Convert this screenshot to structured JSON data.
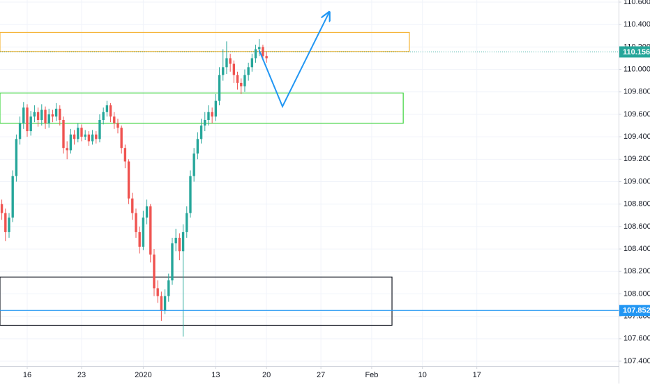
{
  "chart_data": {
    "type": "candlestick",
    "up_color": "#26a69a",
    "down_color": "#ef5350",
    "grid": true,
    "xlim": [
      -0.5,
      170.1
    ],
    "ylim": [
      107.4,
      110.6
    ],
    "yticks": [
      {
        "value": 107.4,
        "label": "107.400"
      },
      {
        "value": 107.6,
        "label": "107.600"
      },
      {
        "value": 107.8,
        "label": "107.800"
      },
      {
        "value": 108.0,
        "label": "108.000"
      },
      {
        "value": 108.2,
        "label": "108.200"
      },
      {
        "value": 108.4,
        "label": "108.400"
      },
      {
        "value": 108.6,
        "label": "108.600"
      },
      {
        "value": 108.8,
        "label": "108.800"
      },
      {
        "value": 109.0,
        "label": "109.000"
      },
      {
        "value": 109.2,
        "label": "109.200"
      },
      {
        "value": 109.4,
        "label": "109.400"
      },
      {
        "value": 109.6,
        "label": "109.600"
      },
      {
        "value": 109.8,
        "label": "109.800"
      },
      {
        "value": 110.0,
        "label": "110.000"
      },
      {
        "value": 110.2,
        "label": "110.200"
      },
      {
        "value": 110.4,
        "label": "110.400"
      },
      {
        "value": 110.6,
        "label": "110.600"
      }
    ],
    "xticks": [
      {
        "value": 7,
        "label": "16"
      },
      {
        "value": 22,
        "label": "23"
      },
      {
        "value": 39,
        "label": "2020"
      },
      {
        "value": 59,
        "label": "13"
      },
      {
        "value": 73,
        "label": "20"
      },
      {
        "value": 88,
        "label": "27"
      },
      {
        "value": 102,
        "label": "Feb"
      },
      {
        "value": 116,
        "label": "10"
      },
      {
        "value": 131,
        "label": "17"
      }
    ],
    "x": [
      0,
      1,
      2,
      3,
      4,
      5,
      6,
      7,
      8,
      9,
      10,
      11,
      12,
      13,
      14,
      15,
      16,
      17,
      18,
      19,
      20,
      21,
      22,
      23,
      24,
      25,
      26,
      27,
      28,
      29,
      30,
      31,
      32,
      33,
      34,
      35,
      36,
      37,
      38,
      39,
      40,
      41,
      42,
      43,
      44,
      45,
      46,
      47,
      48,
      49,
      50,
      51,
      52,
      53,
      54,
      55,
      56,
      57,
      58,
      59,
      60,
      61,
      62,
      63,
      64,
      65,
      66,
      67,
      68,
      69,
      70,
      71,
      72,
      73
    ],
    "open": [
      108.8,
      108.72,
      108.55,
      108.68,
      109.05,
      109.38,
      109.52,
      109.66,
      109.45,
      109.58,
      109.62,
      109.55,
      109.64,
      109.52,
      109.6,
      109.58,
      109.65,
      109.55,
      109.3,
      109.28,
      109.42,
      109.38,
      109.48,
      109.4,
      109.42,
      109.36,
      109.42,
      109.38,
      109.55,
      109.62,
      109.68,
      109.58,
      109.52,
      109.48,
      109.3,
      109.18,
      108.85,
      108.72,
      108.55,
      108.42,
      108.68,
      108.78,
      108.35,
      108.05,
      107.98,
      107.85,
      107.98,
      108.12,
      108.45,
      108.5,
      108.38,
      108.55,
      108.72,
      109.05,
      109.25,
      109.38,
      109.5,
      109.55,
      109.62,
      109.58,
      109.72,
      109.95,
      110.02,
      110.1,
      110.05,
      109.95,
      109.88,
      109.85,
      109.95,
      110.02,
      110.1,
      110.18,
      110.2,
      110.12
    ],
    "high": [
      108.84,
      108.76,
      108.72,
      109.1,
      109.42,
      109.58,
      109.71,
      109.69,
      109.63,
      109.68,
      109.66,
      109.69,
      109.67,
      109.65,
      109.64,
      109.7,
      109.68,
      109.58,
      109.36,
      109.47,
      109.46,
      109.52,
      109.51,
      109.46,
      109.45,
      109.46,
      109.45,
      109.6,
      109.66,
      109.72,
      109.7,
      109.62,
      109.56,
      109.5,
      109.33,
      109.2,
      108.9,
      108.76,
      108.6,
      108.74,
      108.84,
      108.8,
      108.4,
      108.12,
      108.02,
      108.04,
      108.18,
      108.5,
      108.58,
      108.54,
      108.62,
      108.78,
      109.1,
      109.3,
      109.44,
      109.56,
      109.62,
      109.68,
      109.66,
      109.78,
      110.02,
      110.18,
      110.25,
      110.14,
      110.08,
      109.98,
      109.92,
      110.0,
      110.06,
      110.14,
      110.22,
      110.27,
      110.22,
      110.16
    ],
    "low": [
      108.66,
      108.47,
      108.5,
      108.64,
      109.0,
      109.33,
      109.47,
      109.4,
      109.41,
      109.53,
      109.49,
      109.5,
      109.47,
      109.48,
      109.53,
      109.54,
      109.5,
      109.25,
      109.2,
      109.25,
      109.33,
      109.35,
      109.36,
      109.37,
      109.32,
      109.33,
      109.34,
      109.35,
      109.51,
      109.58,
      109.53,
      109.47,
      109.43,
      109.25,
      109.12,
      108.8,
      108.66,
      108.5,
      108.36,
      108.39,
      108.62,
      108.28,
      107.98,
      107.92,
      107.76,
      107.82,
      107.93,
      108.08,
      108.38,
      108.3,
      107.62,
      108.5,
      108.68,
      109.0,
      109.2,
      109.34,
      109.45,
      109.5,
      109.52,
      109.54,
      109.68,
      109.9,
      109.96,
      109.98,
      109.88,
      109.82,
      109.78,
      109.8,
      109.9,
      109.98,
      110.06,
      110.12,
      110.08,
      110.06
    ],
    "close": [
      108.72,
      108.55,
      108.68,
      109.05,
      109.38,
      109.52,
      109.66,
      109.45,
      109.58,
      109.62,
      109.55,
      109.64,
      109.52,
      109.6,
      109.58,
      109.65,
      109.55,
      109.3,
      109.28,
      109.42,
      109.38,
      109.48,
      109.4,
      109.42,
      109.36,
      109.42,
      109.38,
      109.55,
      109.62,
      109.68,
      109.58,
      109.52,
      109.48,
      109.3,
      109.18,
      108.85,
      108.72,
      108.55,
      108.42,
      108.68,
      108.78,
      108.35,
      108.05,
      107.98,
      107.85,
      107.98,
      108.12,
      108.45,
      108.5,
      108.38,
      108.55,
      108.72,
      109.05,
      109.25,
      109.38,
      109.5,
      109.55,
      109.62,
      109.58,
      109.72,
      109.95,
      110.02,
      110.1,
      110.05,
      109.95,
      109.88,
      109.85,
      109.95,
      110.02,
      110.1,
      110.18,
      110.2,
      110.12,
      110.1
    ],
    "zones": [
      {
        "color": "#f5b335",
        "x": [
          -0.5,
          112.4
        ],
        "y": [
          110.16,
          110.33
        ]
      },
      {
        "color": "#3fd43f",
        "x": [
          -0.5,
          110.7
        ],
        "y": [
          109.52,
          109.79
        ]
      },
      {
        "color": "#131722",
        "x": [
          -0.5,
          107.6
        ],
        "y": [
          107.72,
          108.15
        ]
      }
    ],
    "price_lines": [
      {
        "value": 110.156,
        "color": "#26a69a",
        "dotted": true
      },
      {
        "value": 107.852,
        "color": "#2196f3",
        "dotted": false
      }
    ],
    "arrow": {
      "color": "#2196f3",
      "x": [
        71,
        77.4,
        90.3
      ],
      "y": [
        110.17,
        109.67,
        110.51
      ]
    }
  }
}
